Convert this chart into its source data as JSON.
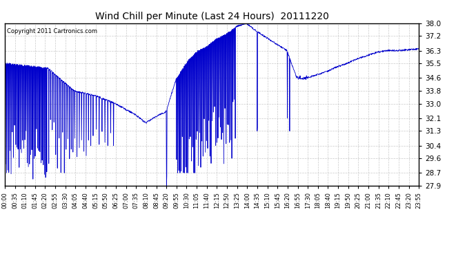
{
  "title": "Wind Chill per Minute (Last 24 Hours)  20111220",
  "copyright": "Copyright 2011 Cartronics.com",
  "line_color": "#0000cc",
  "bg_color": "#ffffff",
  "grid_color": "#bbbbbb",
  "ylim": [
    27.9,
    38.0
  ],
  "yticks": [
    27.9,
    28.7,
    29.6,
    30.4,
    31.3,
    32.1,
    33.0,
    33.8,
    34.6,
    35.5,
    36.3,
    37.2,
    38.0
  ],
  "xtick_labels": [
    "00:00",
    "00:35",
    "01:10",
    "01:45",
    "02:20",
    "02:55",
    "03:30",
    "04:05",
    "04:40",
    "05:15",
    "05:50",
    "06:25",
    "07:00",
    "07:35",
    "08:10",
    "08:45",
    "09:20",
    "09:55",
    "10:30",
    "11:05",
    "11:40",
    "12:15",
    "12:50",
    "13:25",
    "14:00",
    "14:35",
    "15:10",
    "15:45",
    "16:20",
    "16:55",
    "17:30",
    "18:05",
    "18:40",
    "19:15",
    "19:50",
    "20:25",
    "21:00",
    "21:35",
    "22:10",
    "22:45",
    "23:20",
    "23:55"
  ],
  "n_points": 1440
}
